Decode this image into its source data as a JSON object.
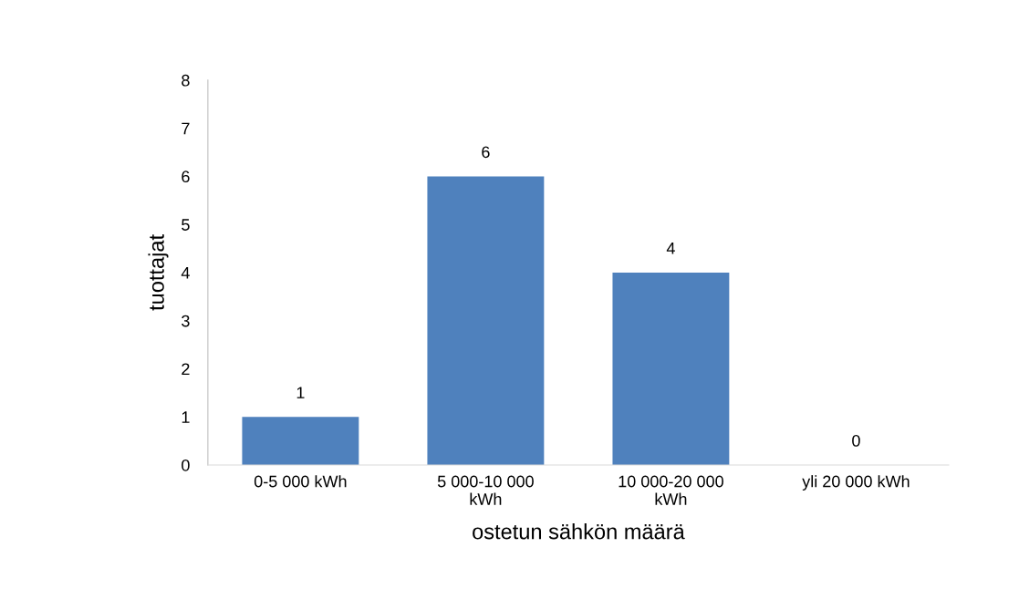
{
  "chart_data": {
    "type": "bar",
    "xlabel": "ostetun sähkön määrä",
    "ylabel": "tuottajat",
    "categories": [
      "0-5 000 kWh",
      "5 000-10 000\nkWh",
      "10 000-20 000\nkWh",
      "yli 20 000 kWh"
    ],
    "values": [
      1,
      6,
      4,
      0
    ],
    "color": "#4f81bd",
    "ylim": [
      0,
      8
    ],
    "yticks": [
      0,
      1,
      2,
      3,
      4,
      5,
      6,
      7,
      8
    ],
    "data_labels": true,
    "grid": false,
    "legend": false
  }
}
